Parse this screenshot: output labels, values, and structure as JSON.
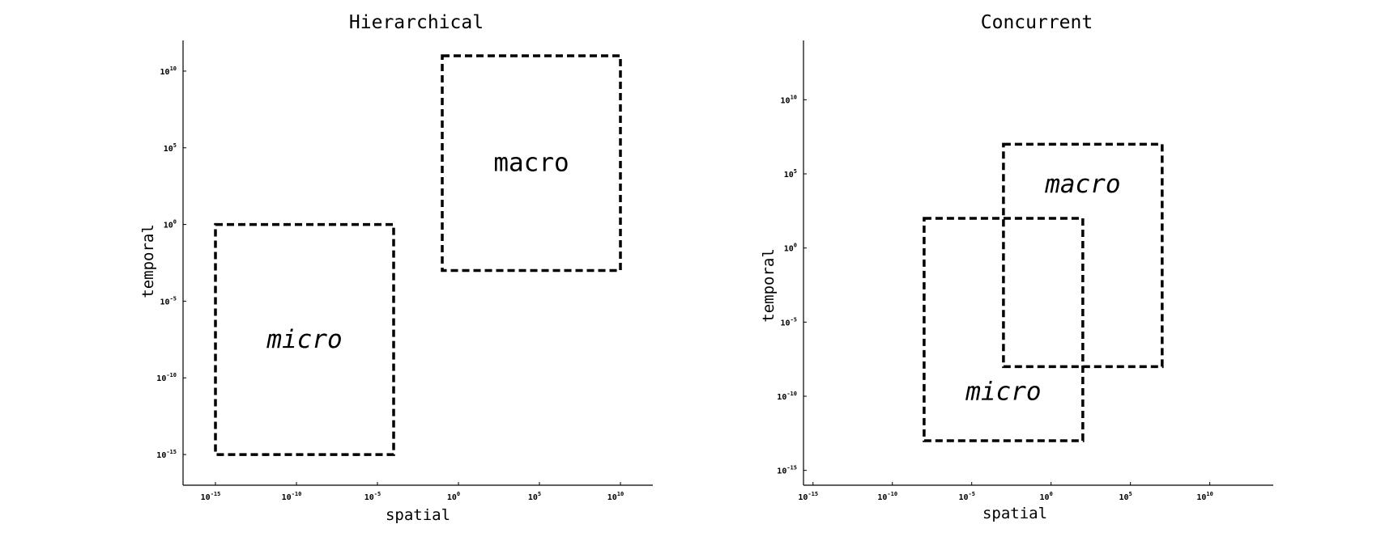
{
  "chart_data": [
    {
      "type": "diagram-regions",
      "title": "Hierarchical",
      "xlabel": "spatial",
      "ylabel": "temporal",
      "x_scale": "log",
      "y_scale": "log",
      "xlim_exp": [
        -17,
        12
      ],
      "ylim_exp": [
        -17,
        12
      ],
      "x_ticks": [
        {
          "base": "10",
          "exp": "-15",
          "value_exp": -15
        },
        {
          "base": "10",
          "exp": "-10",
          "value_exp": -10
        },
        {
          "base": "10",
          "exp": "-5",
          "value_exp": -5
        },
        {
          "base": "10",
          "exp": "0",
          "value_exp": 0
        },
        {
          "base": "10",
          "exp": "5",
          "value_exp": 5
        },
        {
          "base": "10",
          "exp": "10",
          "value_exp": 10
        }
      ],
      "y_ticks": [
        {
          "base": "10",
          "exp": "10",
          "value_exp": 10
        },
        {
          "base": "10",
          "exp": "5",
          "value_exp": 5
        },
        {
          "base": "10",
          "exp": "0",
          "value_exp": 0
        },
        {
          "base": "10",
          "exp": "-5",
          "value_exp": -5
        },
        {
          "base": "10",
          "exp": "-10",
          "value_exp": -10
        },
        {
          "base": "10",
          "exp": "-15",
          "value_exp": -15
        }
      ],
      "regions": [
        {
          "label": "macro",
          "x_exp": [
            -1,
            10
          ],
          "y_exp": [
            -3,
            11
          ],
          "label_style": "normal"
        },
        {
          "label": "micro",
          "x_exp": [
            -15,
            -4
          ],
          "y_exp": [
            -15,
            0
          ],
          "label_style": "italic"
        }
      ]
    },
    {
      "type": "diagram-regions",
      "title": "Concurrent",
      "xlabel": "spatial",
      "ylabel": "temporal",
      "x_scale": "log",
      "y_scale": "log",
      "xlim_exp": [
        -15.6,
        14
      ],
      "ylim_exp": [
        -16,
        14
      ],
      "x_ticks": [
        {
          "base": "10",
          "exp": "-15",
          "value_exp": -15
        },
        {
          "base": "10",
          "exp": "-10",
          "value_exp": -10
        },
        {
          "base": "10",
          "exp": "-5",
          "value_exp": -5
        },
        {
          "base": "10",
          "exp": "0",
          "value_exp": 0
        },
        {
          "base": "10",
          "exp": "5",
          "value_exp": 5
        },
        {
          "base": "10",
          "exp": "10",
          "value_exp": 10
        }
      ],
      "y_ticks": [
        {
          "base": "10",
          "exp": "10",
          "value_exp": 10
        },
        {
          "base": "10",
          "exp": "5",
          "value_exp": 5
        },
        {
          "base": "10",
          "exp": "0",
          "value_exp": 0
        },
        {
          "base": "10",
          "exp": "-5",
          "value_exp": -5
        },
        {
          "base": "10",
          "exp": "-10",
          "value_exp": -10
        },
        {
          "base": "10",
          "exp": "-15",
          "value_exp": -15
        }
      ],
      "regions": [
        {
          "label": "macro",
          "x_exp": [
            -3,
            7
          ],
          "y_exp": [
            -8,
            7
          ],
          "label_style": "italic"
        },
        {
          "label": "micro",
          "x_exp": [
            -8,
            2
          ],
          "y_exp": [
            -13,
            2
          ],
          "label_style": "italic"
        }
      ]
    }
  ]
}
